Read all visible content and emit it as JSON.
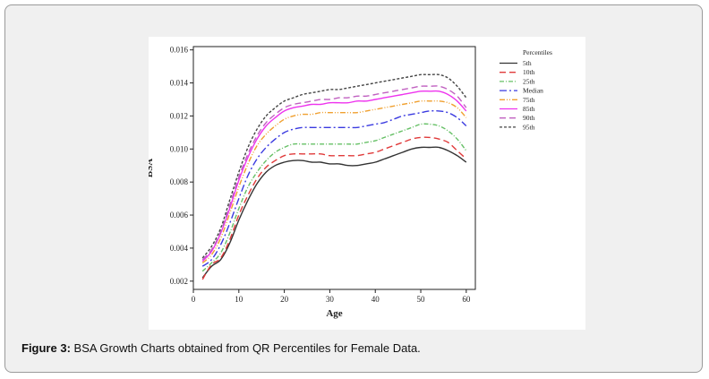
{
  "caption": {
    "label": "Figure 3:",
    "text": " BSA Growth Charts obtained from QR Percentiles for Female Data."
  },
  "chart_data": {
    "type": "line",
    "title": "",
    "xlabel": "Age",
    "ylabel": "BSA",
    "xlim": [
      0,
      62
    ],
    "ylim": [
      0.0015,
      0.0162
    ],
    "xticks": [
      0,
      10,
      20,
      30,
      40,
      50,
      60
    ],
    "xtick_labels": [
      "0",
      "10",
      "20",
      "30",
      "40",
      "50",
      "60"
    ],
    "yticks": [
      0.002,
      0.004,
      0.006,
      0.008,
      0.01,
      0.012,
      0.014,
      0.016
    ],
    "ytick_labels": [
      "0.002",
      "0.004",
      "0.006",
      "0.008",
      "0.010",
      "0.012",
      "0.014",
      "0.016"
    ],
    "legend_title": "Percentiles",
    "legend_position": "right",
    "grid": false,
    "x": [
      2,
      4,
      6,
      8,
      10,
      12,
      14,
      16,
      18,
      20,
      22,
      24,
      26,
      28,
      30,
      32,
      34,
      36,
      38,
      40,
      42,
      44,
      46,
      48,
      50,
      52,
      54,
      56,
      58,
      60
    ],
    "series": [
      {
        "name": "5th",
        "color": "#333333",
        "dash": "solid",
        "values": [
          0.0022,
          0.0029,
          0.0033,
          0.0043,
          0.0057,
          0.0069,
          0.0079,
          0.0086,
          0.009,
          0.0092,
          0.0093,
          0.0093,
          0.0092,
          0.0092,
          0.0091,
          0.0091,
          0.009,
          0.009,
          0.0091,
          0.0092,
          0.0094,
          0.0096,
          0.0098,
          0.01,
          0.0101,
          0.0101,
          0.0101,
          0.0099,
          0.0096,
          0.0092
        ]
      },
      {
        "name": "10th",
        "color": "#e03a3a",
        "dash": "long-dash",
        "values": [
          0.0021,
          0.003,
          0.0034,
          0.0045,
          0.006,
          0.0072,
          0.0082,
          0.0089,
          0.0093,
          0.0096,
          0.0097,
          0.0097,
          0.0097,
          0.0097,
          0.0096,
          0.0096,
          0.0096,
          0.0096,
          0.0097,
          0.0098,
          0.01,
          0.0102,
          0.0104,
          0.0106,
          0.0107,
          0.0107,
          0.0106,
          0.0104,
          0.0099,
          0.0094
        ]
      },
      {
        "name": "25th",
        "color": "#66c066",
        "dash": "dash-dot",
        "values": [
          0.0026,
          0.0031,
          0.0037,
          0.0049,
          0.0064,
          0.0077,
          0.0086,
          0.0093,
          0.0098,
          0.0101,
          0.0103,
          0.0103,
          0.0103,
          0.0103,
          0.0103,
          0.0103,
          0.0103,
          0.0103,
          0.0104,
          0.0105,
          0.0107,
          0.0109,
          0.0111,
          0.0113,
          0.0115,
          0.0115,
          0.0114,
          0.0111,
          0.0106,
          0.0099
        ]
      },
      {
        "name": "Median",
        "color": "#3a3ae0",
        "dash": "long-dash-dot",
        "values": [
          0.0029,
          0.0033,
          0.0042,
          0.0055,
          0.007,
          0.0084,
          0.0094,
          0.0101,
          0.0106,
          0.011,
          0.0112,
          0.0113,
          0.0113,
          0.0113,
          0.0113,
          0.0113,
          0.0113,
          0.0113,
          0.0114,
          0.0115,
          0.0116,
          0.0118,
          0.012,
          0.0121,
          0.0122,
          0.0123,
          0.0123,
          0.0122,
          0.0119,
          0.0114
        ]
      },
      {
        "name": "75th",
        "color": "#f0a030",
        "dash": "dash-dot-dot",
        "values": [
          0.0031,
          0.0036,
          0.0046,
          0.0061,
          0.0077,
          0.0091,
          0.0102,
          0.0109,
          0.0114,
          0.0118,
          0.012,
          0.0121,
          0.0121,
          0.0122,
          0.0122,
          0.0122,
          0.0122,
          0.0122,
          0.0123,
          0.0124,
          0.0125,
          0.0126,
          0.0127,
          0.0128,
          0.0129,
          0.0129,
          0.0129,
          0.0128,
          0.0125,
          0.0119
        ]
      },
      {
        "name": "85th",
        "color": "#ee33ee",
        "dash": "solid",
        "values": [
          0.0032,
          0.0038,
          0.0049,
          0.0064,
          0.0081,
          0.0095,
          0.0106,
          0.0114,
          0.0119,
          0.0123,
          0.0125,
          0.0126,
          0.0127,
          0.0127,
          0.0128,
          0.0128,
          0.0128,
          0.0129,
          0.0129,
          0.013,
          0.0131,
          0.0132,
          0.0133,
          0.0134,
          0.0135,
          0.0135,
          0.0135,
          0.0133,
          0.0129,
          0.0123
        ]
      },
      {
        "name": "90th",
        "color": "#c060c0",
        "dash": "long-dash",
        "values": [
          0.0033,
          0.0039,
          0.005,
          0.0066,
          0.0083,
          0.0097,
          0.0108,
          0.0116,
          0.0121,
          0.0125,
          0.0127,
          0.0128,
          0.0129,
          0.013,
          0.013,
          0.0131,
          0.0131,
          0.0132,
          0.0132,
          0.0133,
          0.0134,
          0.0135,
          0.0136,
          0.0137,
          0.0138,
          0.0138,
          0.0138,
          0.0136,
          0.0132,
          0.0125
        ]
      },
      {
        "name": "95th",
        "color": "#444444",
        "dash": "short-dash",
        "values": [
          0.0034,
          0.0041,
          0.0052,
          0.0069,
          0.0086,
          0.0101,
          0.0112,
          0.012,
          0.0125,
          0.0129,
          0.0131,
          0.0133,
          0.0134,
          0.0135,
          0.0136,
          0.0136,
          0.0137,
          0.0138,
          0.0139,
          0.014,
          0.0141,
          0.0142,
          0.0143,
          0.0144,
          0.0145,
          0.0145,
          0.0145,
          0.0143,
          0.0138,
          0.0131
        ]
      }
    ]
  }
}
